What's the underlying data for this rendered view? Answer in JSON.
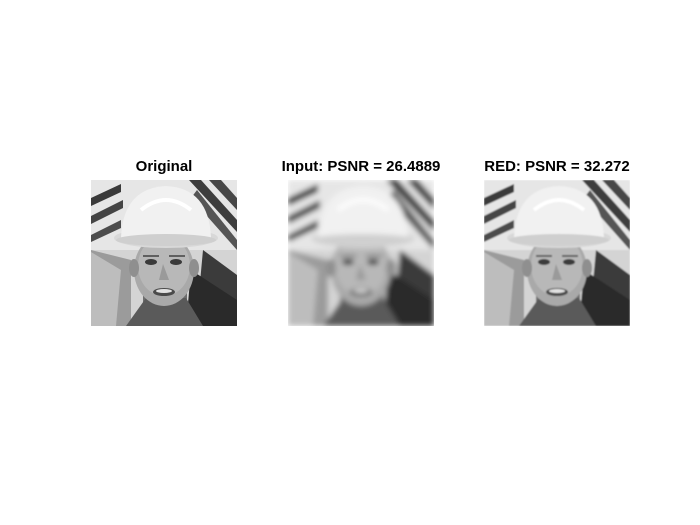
{
  "figure": {
    "panels": [
      {
        "title": "Original"
      },
      {
        "title": "Input: PSNR = 26.4889"
      },
      {
        "title": "RED: PSNR = 32.272"
      }
    ]
  }
}
